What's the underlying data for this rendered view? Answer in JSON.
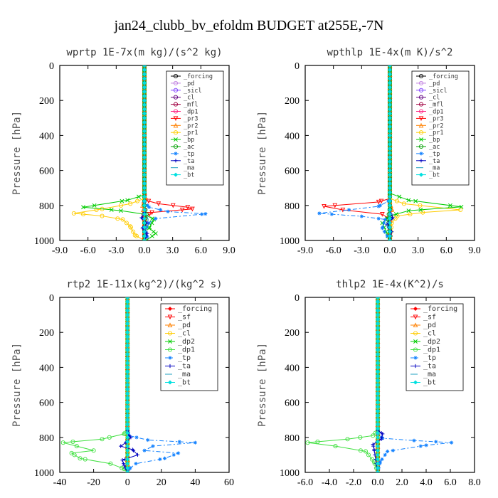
{
  "title": "jan24_clubb_bv_efoldm  BUDGET at255E,-7N",
  "chart_data": [
    {
      "type": "line",
      "title": "wprtp  1E-7x(m kg)/(s^2 kg)",
      "ylabel": "Pressure [hPa]",
      "xlim": [
        -9,
        9
      ],
      "ylim": [
        1000,
        0
      ],
      "xticks": [
        "-9.0",
        "-6.0",
        "-3.0",
        "0.0",
        "3.0",
        "6.0",
        "9.0"
      ],
      "yticks": [
        "0",
        "200",
        "400",
        "600",
        "800",
        "1000"
      ],
      "legend_position": "top-right",
      "series": [
        {
          "name": "_forcing",
          "color": "#000000",
          "marker": "circle",
          "dash": "",
          "x": [
            0,
            0,
            0
          ],
          "y": [
            0,
            500,
            1000
          ]
        },
        {
          "name": "_pd",
          "color": "#c080e0",
          "marker": "circle",
          "dash": "",
          "x": [
            0,
            0,
            0
          ],
          "y": [
            0,
            500,
            1000
          ]
        },
        {
          "name": "_sicl",
          "color": "#8040ff",
          "marker": "circle",
          "dash": "",
          "x": [
            0,
            0,
            0
          ],
          "y": [
            0,
            500,
            1000
          ]
        },
        {
          "name": "_cl",
          "color": "#600080",
          "marker": "circle",
          "dash": "",
          "x": [
            0,
            0,
            0
          ],
          "y": [
            0,
            500,
            1000
          ]
        },
        {
          "name": "_mfl",
          "color": "#a00040",
          "marker": "circle",
          "dash": "",
          "x": [
            0,
            0,
            0
          ],
          "y": [
            0,
            500,
            1000
          ]
        },
        {
          "name": "_dp1",
          "color": "#ff2080",
          "marker": "circle",
          "dash": "",
          "x": [
            0,
            0,
            0
          ],
          "y": [
            0,
            500,
            1000
          ]
        },
        {
          "name": "_pr3",
          "color": "#ff0000",
          "marker": "triangle-down",
          "dash": "",
          "x": [
            0,
            0,
            0.1,
            1.5,
            4.6,
            5.1,
            0.8,
            0,
            0
          ],
          "y": [
            0,
            740,
            770,
            790,
            810,
            820,
            840,
            870,
            1000
          ]
        },
        {
          "name": "_pr2",
          "color": "#ff8000",
          "marker": "triangle",
          "dash": "",
          "x": [
            0,
            0,
            -0.2,
            -0.1,
            0,
            0
          ],
          "y": [
            0,
            760,
            800,
            840,
            880,
            1000
          ]
        },
        {
          "name": "_pr1",
          "color": "#ffcc00",
          "marker": "circle",
          "dash": "",
          "x": [
            0,
            0,
            -1.5,
            -4.5,
            -7.5,
            -4.5,
            -2.3,
            -1.5,
            -1,
            0
          ],
          "y": [
            0,
            760,
            790,
            820,
            845,
            860,
            880,
            920,
            970,
            1000
          ]
        },
        {
          "name": "_bp",
          "color": "#00cc00",
          "marker": "x",
          "dash": "",
          "x": [
            0,
            0,
            -1.8,
            -6.5,
            -2.5,
            0,
            1,
            0.5,
            1.2,
            0.2
          ],
          "y": [
            0,
            740,
            770,
            810,
            830,
            850,
            880,
            930,
            960,
            1000
          ]
        },
        {
          "name": "_ac",
          "color": "#00a000",
          "marker": "circle",
          "dash": "",
          "x": [
            0,
            0,
            0.2,
            0,
            0
          ],
          "y": [
            0,
            800,
            850,
            900,
            1000
          ]
        },
        {
          "name": "_tp",
          "color": "#1080ff",
          "marker": "star",
          "dash": "6,3,2,3",
          "x": [
            0,
            0,
            0.5,
            2.5,
            6.5,
            1.2,
            0.5,
            0,
            0.3,
            0
          ],
          "y": [
            0,
            780,
            810,
            835,
            848,
            875,
            900,
            950,
            980,
            1000
          ]
        },
        {
          "name": "_ta",
          "color": "#0000c0",
          "marker": "plus",
          "dash": "",
          "x": [
            0,
            0,
            -0.3,
            0.3,
            -0.2,
            0.3,
            0
          ],
          "y": [
            0,
            840,
            870,
            900,
            930,
            960,
            1000
          ]
        },
        {
          "name": "_ma",
          "color": "#20a0c0",
          "marker": "none",
          "dash": "10,4",
          "x": [
            0,
            0,
            0.4,
            0
          ],
          "y": [
            0,
            820,
            880,
            1000
          ]
        },
        {
          "name": "_bt",
          "color": "#00e0e0",
          "marker": "diamond",
          "dash": "",
          "x": [
            0,
            0,
            0
          ],
          "y": [
            0,
            500,
            1000
          ]
        }
      ]
    },
    {
      "type": "line",
      "title": "wpthlp  1E-4x(m K)/s^2",
      "ylabel": "Pressure [hPa]",
      "xlim": [
        -9,
        9
      ],
      "ylim": [
        1000,
        0
      ],
      "xticks": [
        "-9.0",
        "-6.0",
        "-3.0",
        "0.0",
        "3.0",
        "6.0",
        "9.0"
      ],
      "yticks": [
        "0",
        "200",
        "400",
        "600",
        "800",
        "1000"
      ],
      "legend_position": "top-right",
      "series": [
        {
          "name": "_forcing",
          "color": "#000000",
          "marker": "circle",
          "dash": "",
          "x": [
            0,
            0,
            0
          ],
          "y": [
            0,
            500,
            1000
          ]
        },
        {
          "name": "_pd",
          "color": "#c080e0",
          "marker": "circle",
          "dash": "",
          "x": [
            0,
            0,
            0
          ],
          "y": [
            0,
            500,
            1000
          ]
        },
        {
          "name": "_sicl",
          "color": "#8040ff",
          "marker": "circle",
          "dash": "",
          "x": [
            0,
            0,
            0
          ],
          "y": [
            0,
            500,
            1000
          ]
        },
        {
          "name": "_cl",
          "color": "#600080",
          "marker": "circle",
          "dash": "",
          "x": [
            0,
            0,
            0
          ],
          "y": [
            0,
            500,
            1000
          ]
        },
        {
          "name": "_mfl",
          "color": "#a00040",
          "marker": "circle",
          "dash": "",
          "x": [
            0,
            0,
            0
          ],
          "y": [
            0,
            500,
            1000
          ]
        },
        {
          "name": "_dp1",
          "color": "#ff2080",
          "marker": "circle",
          "dash": "",
          "x": [
            0,
            0,
            0
          ],
          "y": [
            0,
            500,
            1000
          ]
        },
        {
          "name": "_pr3",
          "color": "#ff0000",
          "marker": "triangle-down",
          "dash": "",
          "x": [
            0,
            0,
            -1.2,
            -7,
            -5,
            -0.8,
            0,
            0
          ],
          "y": [
            0,
            760,
            780,
            805,
            825,
            850,
            880,
            1000
          ]
        },
        {
          "name": "_pr2",
          "color": "#ff8000",
          "marker": "triangle",
          "dash": "",
          "x": [
            0,
            0,
            0.2,
            0,
            0
          ],
          "y": [
            0,
            780,
            820,
            870,
            1000
          ]
        },
        {
          "name": "_pr1",
          "color": "#ffcc00",
          "marker": "circle",
          "dash": "",
          "x": [
            0,
            0,
            1.5,
            7.5,
            3.5,
            0.8,
            0.2,
            0
          ],
          "y": [
            0,
            760,
            790,
            825,
            840,
            860,
            900,
            1000
          ]
        },
        {
          "name": "_bp",
          "color": "#00cc00",
          "marker": "x",
          "dash": "",
          "x": [
            0,
            0,
            2,
            7.6,
            2,
            0,
            -0.8,
            0
          ],
          "y": [
            0,
            730,
            770,
            808,
            830,
            860,
            900,
            1000
          ]
        },
        {
          "name": "_ac",
          "color": "#00a000",
          "marker": "circle",
          "dash": "",
          "x": [
            0,
            0,
            -0.2,
            0,
            0
          ],
          "y": [
            0,
            820,
            880,
            940,
            1000
          ]
        },
        {
          "name": "_tp",
          "color": "#1080ff",
          "marker": "star",
          "dash": "6,3,2,3",
          "x": [
            0,
            0,
            -1.2,
            -7.5,
            -3,
            -0.5,
            -0.8,
            0
          ],
          "y": [
            0,
            770,
            805,
            845,
            862,
            880,
            930,
            1000
          ]
        },
        {
          "name": "_ta",
          "color": "#0000c0",
          "marker": "plus",
          "dash": "",
          "x": [
            0,
            0,
            0.3,
            -0.3,
            0.2,
            0
          ],
          "y": [
            0,
            830,
            870,
            910,
            950,
            1000
          ]
        },
        {
          "name": "_ma",
          "color": "#20a0c0",
          "marker": "none",
          "dash": "10,4",
          "x": [
            0,
            0,
            -0.3,
            0
          ],
          "y": [
            0,
            840,
            900,
            1000
          ]
        },
        {
          "name": "_bt",
          "color": "#00e0e0",
          "marker": "diamond",
          "dash": "",
          "x": [
            0,
            0,
            0
          ],
          "y": [
            0,
            500,
            1000
          ]
        }
      ]
    },
    {
      "type": "line",
      "title": "rtp2  1E-11x(kg^2)/(kg^2 s)",
      "ylabel": "Pressure [hPa]",
      "xlim": [
        -40,
        60
      ],
      "ylim": [
        1000,
        0
      ],
      "xticks": [
        "-40",
        "-20",
        "0",
        "20",
        "40",
        "60"
      ],
      "yticks": [
        "0",
        "200",
        "400",
        "600",
        "800",
        "1000"
      ],
      "legend_position": "top-right",
      "series": [
        {
          "name": "_forcing",
          "color": "#ff0000",
          "marker": "diamond",
          "dash": "",
          "x": [
            0,
            0,
            0
          ],
          "y": [
            0,
            500,
            1000
          ]
        },
        {
          "name": "_sf",
          "color": "#ff0000",
          "marker": "triangle-down",
          "dash": "",
          "x": [
            0,
            0,
            0
          ],
          "y": [
            0,
            500,
            1000
          ]
        },
        {
          "name": "_pd",
          "color": "#ff8000",
          "marker": "triangle",
          "dash": "",
          "x": [
            0,
            0,
            0
          ],
          "y": [
            0,
            500,
            1000
          ]
        },
        {
          "name": "_cl",
          "color": "#ffcc00",
          "marker": "circle",
          "dash": "",
          "x": [
            0,
            0,
            0
          ],
          "y": [
            0,
            500,
            1000
          ]
        },
        {
          "name": "_dp2",
          "color": "#00cc00",
          "marker": "x",
          "dash": "",
          "x": [
            0,
            0,
            0
          ],
          "y": [
            0,
            500,
            1000
          ]
        },
        {
          "name": "_dp1",
          "color": "#40e040",
          "marker": "circle",
          "dash": "",
          "x": [
            0,
            0,
            -2,
            -15,
            -38,
            -30,
            -20,
            -33,
            -28,
            -10,
            -2,
            0
          ],
          "y": [
            0,
            760,
            780,
            810,
            830,
            850,
            875,
            890,
            920,
            950,
            980,
            1000
          ]
        },
        {
          "name": "_tp",
          "color": "#1080ff",
          "marker": "star",
          "dash": "6,3,2,3",
          "x": [
            0,
            0,
            1,
            12,
            40,
            15,
            10,
            30,
            22,
            5,
            1,
            0
          ],
          "y": [
            0,
            760,
            790,
            815,
            830,
            850,
            875,
            890,
            920,
            950,
            980,
            1000
          ]
        },
        {
          "name": "_ta",
          "color": "#0000c0",
          "marker": "plus",
          "dash": "",
          "x": [
            0,
            0,
            1,
            2,
            -1,
            -4,
            3,
            6,
            -3,
            -2,
            0
          ],
          "y": [
            0,
            760,
            790,
            800,
            830,
            850,
            870,
            900,
            930,
            960,
            1000
          ]
        },
        {
          "name": "_ma",
          "color": "#20a0c0",
          "marker": "none",
          "dash": "10,4",
          "x": [
            0,
            0,
            0
          ],
          "y": [
            0,
            500,
            1000
          ]
        },
        {
          "name": "_bt",
          "color": "#00e0e0",
          "marker": "diamond",
          "dash": "",
          "x": [
            0,
            0,
            0
          ],
          "y": [
            0,
            500,
            1000
          ]
        }
      ]
    },
    {
      "type": "line",
      "title": "thlp2  1E-4x(K^2)/s",
      "ylabel": "Pressure [hPa]",
      "xlim": [
        -6,
        8
      ],
      "ylim": [
        1000,
        0
      ],
      "xticks": [
        "-6.0",
        "-4.0",
        "-2.0",
        "0.0",
        "2.0",
        "4.0",
        "6.0",
        "8.0"
      ],
      "yticks": [
        "0",
        "200",
        "400",
        "600",
        "800",
        "1000"
      ],
      "legend_position": "top-right",
      "series": [
        {
          "name": "_forcing",
          "color": "#ff0000",
          "marker": "diamond",
          "dash": "",
          "x": [
            0,
            0,
            0
          ],
          "y": [
            0,
            500,
            1000
          ]
        },
        {
          "name": "_sf",
          "color": "#ff0000",
          "marker": "triangle-down",
          "dash": "",
          "x": [
            0,
            0,
            0
          ],
          "y": [
            0,
            500,
            1000
          ]
        },
        {
          "name": "_pd",
          "color": "#ff8000",
          "marker": "triangle",
          "dash": "",
          "x": [
            0,
            0,
            0
          ],
          "y": [
            0,
            500,
            1000
          ]
        },
        {
          "name": "_cl",
          "color": "#ffcc00",
          "marker": "circle",
          "dash": "",
          "x": [
            0,
            0,
            0
          ],
          "y": [
            0,
            500,
            1000
          ]
        },
        {
          "name": "_dp2",
          "color": "#00cc00",
          "marker": "x",
          "dash": "",
          "x": [
            0,
            0,
            0
          ],
          "y": [
            0,
            500,
            1000
          ]
        },
        {
          "name": "_dp1",
          "color": "#40e040",
          "marker": "circle",
          "dash": "",
          "x": [
            0,
            0,
            -0.4,
            -2.5,
            -5.8,
            -3.5,
            -1,
            -0.3,
            0
          ],
          "y": [
            0,
            760,
            790,
            810,
            830,
            850,
            880,
            940,
            1000
          ]
        },
        {
          "name": "_tp",
          "color": "#1080ff",
          "marker": "star",
          "dash": "6,3,2,3",
          "x": [
            0,
            0,
            0.4,
            3,
            6.1,
            4,
            0.8,
            0.2,
            0
          ],
          "y": [
            0,
            780,
            805,
            818,
            830,
            845,
            880,
            940,
            1000
          ]
        },
        {
          "name": "_ta",
          "color": "#0000c0",
          "marker": "plus",
          "dash": "",
          "x": [
            0,
            0,
            0.4,
            0.3,
            -0.4,
            -0.3,
            0
          ],
          "y": [
            0,
            760,
            780,
            810,
            840,
            870,
            1000
          ]
        },
        {
          "name": "_ma",
          "color": "#20a0c0",
          "marker": "none",
          "dash": "10,4",
          "x": [
            0,
            0,
            0
          ],
          "y": [
            0,
            500,
            1000
          ]
        },
        {
          "name": "_bt",
          "color": "#00e0e0",
          "marker": "diamond",
          "dash": "",
          "x": [
            0,
            0,
            0
          ],
          "y": [
            0,
            500,
            1000
          ]
        }
      ]
    }
  ]
}
